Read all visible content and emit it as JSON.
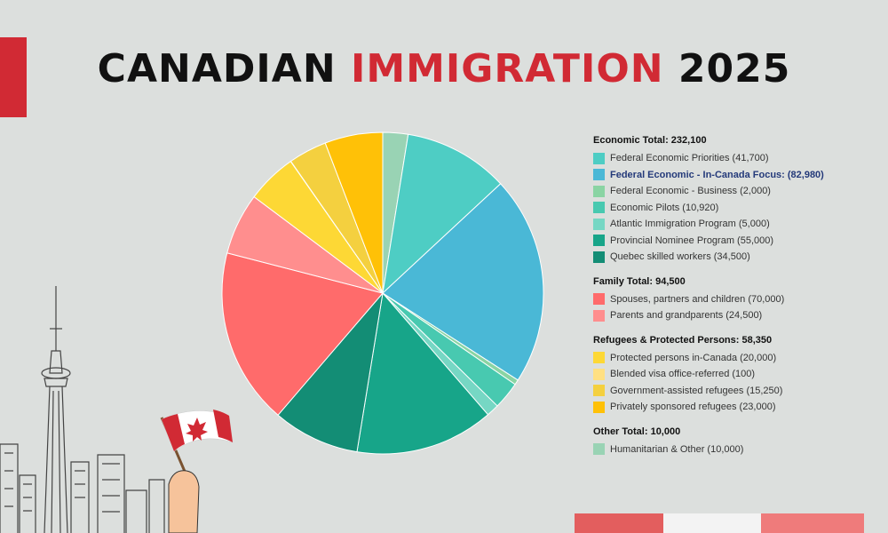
{
  "title": {
    "part1": "CANADIAN",
    "part2": "IMMIGRATION",
    "part3": "2025"
  },
  "colors": {
    "accent": "#d12a34",
    "background": "#dcdfdd"
  },
  "chart_data": {
    "type": "pie",
    "title": "CANADIAN IMMIGRATION 2025",
    "groups": [
      {
        "title": "Economic Total: 232,100",
        "items": [
          {
            "label": "Federal Economic Priorities (41,700)",
            "value": 41700,
            "color": "#4ecdc4"
          },
          {
            "label": "Federal Economic - In-Canada Focus: (82,980)",
            "value": 82980,
            "color": "#4ab8d6",
            "emphasis": true
          },
          {
            "label": "Federal Economic - Business (2,000)",
            "value": 2000,
            "color": "#8ad4a3"
          },
          {
            "label": "Economic Pilots (10,920)",
            "value": 10920,
            "color": "#48c9b0"
          },
          {
            "label": "Atlantic Immigration Program (5,000)",
            "value": 5000,
            "color": "#76d7c4"
          },
          {
            "label": "Provincial Nominee Program (55,000)",
            "value": 55000,
            "color": "#17a589"
          },
          {
            "label": "Quebec skilled workers (34,500)",
            "value": 34500,
            "color": "#138d75"
          }
        ]
      },
      {
        "title": "Family Total: 94,500",
        "items": [
          {
            "label": "Spouses, partners and children (70,000)",
            "value": 70000,
            "color": "#ff6b6b"
          },
          {
            "label": "Parents and grandparents (24,500)",
            "value": 24500,
            "color": "#ff8e8e"
          }
        ]
      },
      {
        "title": "Refugees & Protected Persons: 58,350",
        "items": [
          {
            "label": "Protected persons in-Canada (20,000)",
            "value": 20000,
            "color": "#fdd835"
          },
          {
            "label": "Blended visa office-referred (100)",
            "value": 100,
            "color": "#ffe082"
          },
          {
            "label": "Government-assisted refugees (15,250)",
            "value": 15250,
            "color": "#f4d03f"
          },
          {
            "label": "Privately sponsored refugees (23,000)",
            "value": 23000,
            "color": "#ffc107"
          }
        ]
      },
      {
        "title": "Other Total: 10,000",
        "items": [
          {
            "label": "Humanitarian & Other (10,000)",
            "value": 10000,
            "color": "#99d3b4"
          }
        ]
      }
    ]
  }
}
